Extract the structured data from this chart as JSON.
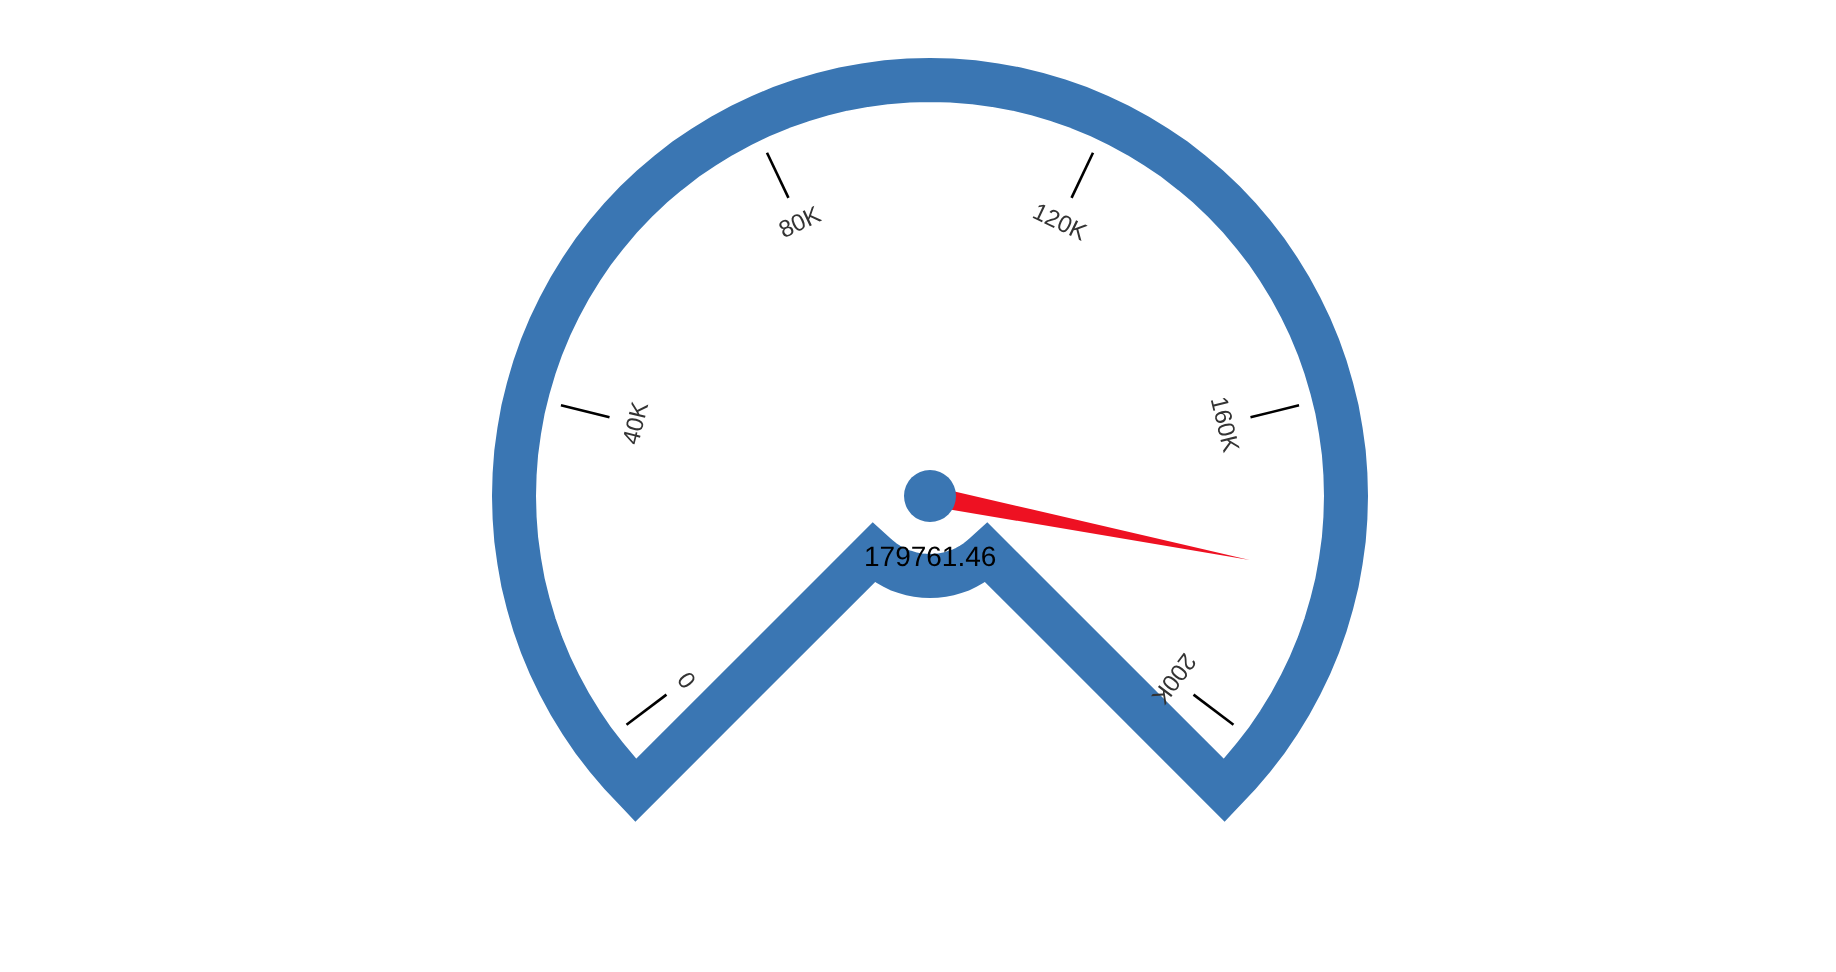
{
  "chart_data": {
    "type": "other",
    "color": "#3a76b3",
    "values": [
      179761.46
    ],
    "data_labels": true,
    "annotations": [
      "0",
      "40K",
      "80K",
      "120K",
      "160K",
      "200K"
    ]
  }
}
